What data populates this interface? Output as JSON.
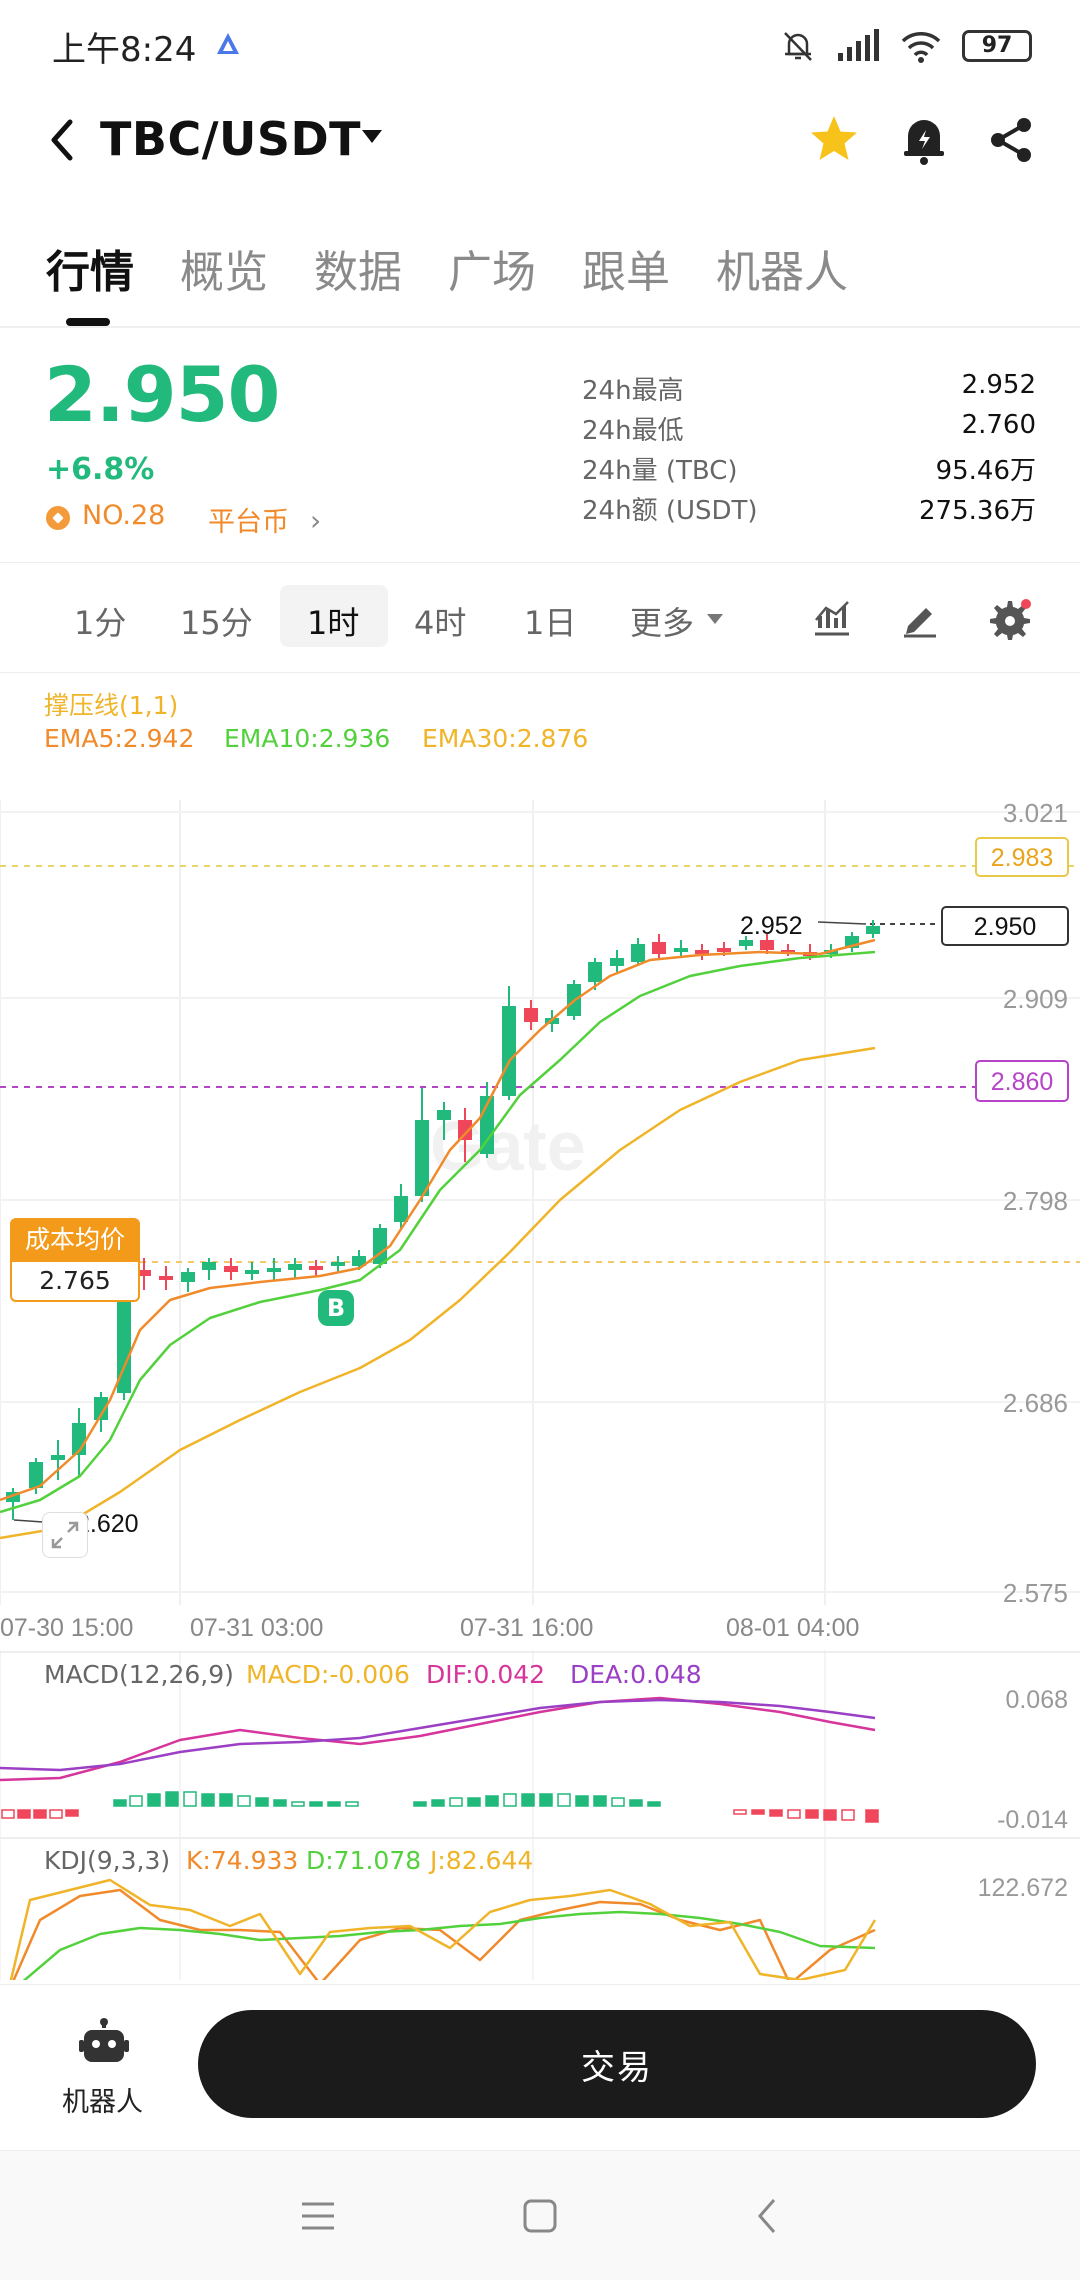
{
  "status": {
    "time": "上午8:24",
    "battery": "97"
  },
  "header": {
    "pair": "TBC/USDT"
  },
  "tabs": [
    "行情",
    "概览",
    "数据",
    "广场",
    "跟单",
    "机器人"
  ],
  "price": {
    "last": "2.950",
    "change": "+6.8%",
    "rank": "NO.28",
    "platform": "平台币",
    "stats": [
      {
        "label": "24h最高",
        "value": "2.952"
      },
      {
        "label": "24h最低",
        "value": "2.760"
      },
      {
        "label": "24h量 (TBC)",
        "value": "95.46万"
      },
      {
        "label": "24h额 (USDT)",
        "value": "275.36万"
      }
    ]
  },
  "intervals": [
    "1分",
    "15分",
    "1时",
    "4时",
    "1日",
    "更多"
  ],
  "indicators": {
    "support": "撑压线(1,1)",
    "ema5": "EMA5:2.942",
    "ema10": "EMA10:2.936",
    "ema30": "EMA30:2.876",
    "macd_title": "MACD(12,26,9)",
    "macd": "MACD:-0.006",
    "dif": "DIF:0.042",
    "dea": "DEA:0.048",
    "kdj_title": "KDJ(9,3,3)",
    "k": "K:74.933",
    "d": "D:71.078",
    "j": "J:82.644"
  },
  "chart_axis": {
    "y_labels": [
      "3.021",
      "2.909",
      "2.798",
      "2.686",
      "2.575"
    ],
    "x_labels": [
      "07-30 15:00",
      "07-31 03:00",
      "07-31 16:00",
      "08-01 04:00"
    ],
    "tag_top": "2.983",
    "tag_price": "2.950",
    "tag_support": "2.860",
    "high_label": "2.952",
    "low_label": "2.620",
    "cost_title": "成本均价",
    "cost_value": "2.765",
    "buy_marker": "B",
    "watermark": "Gate",
    "macd_top": "0.068",
    "macd_bottom": "-0.014",
    "kdj_top": "122.672"
  },
  "colors": {
    "up": "#21b97c",
    "down": "#f0465a",
    "ema5": "#f08a2a",
    "ema10": "#53d13d",
    "ema30": "#f0b429",
    "dif": "#d6359b",
    "dea": "#9b3fc4",
    "support": "#b544c8"
  },
  "bottom": {
    "robot_label": "机器人",
    "trade_label": "交易"
  }
}
